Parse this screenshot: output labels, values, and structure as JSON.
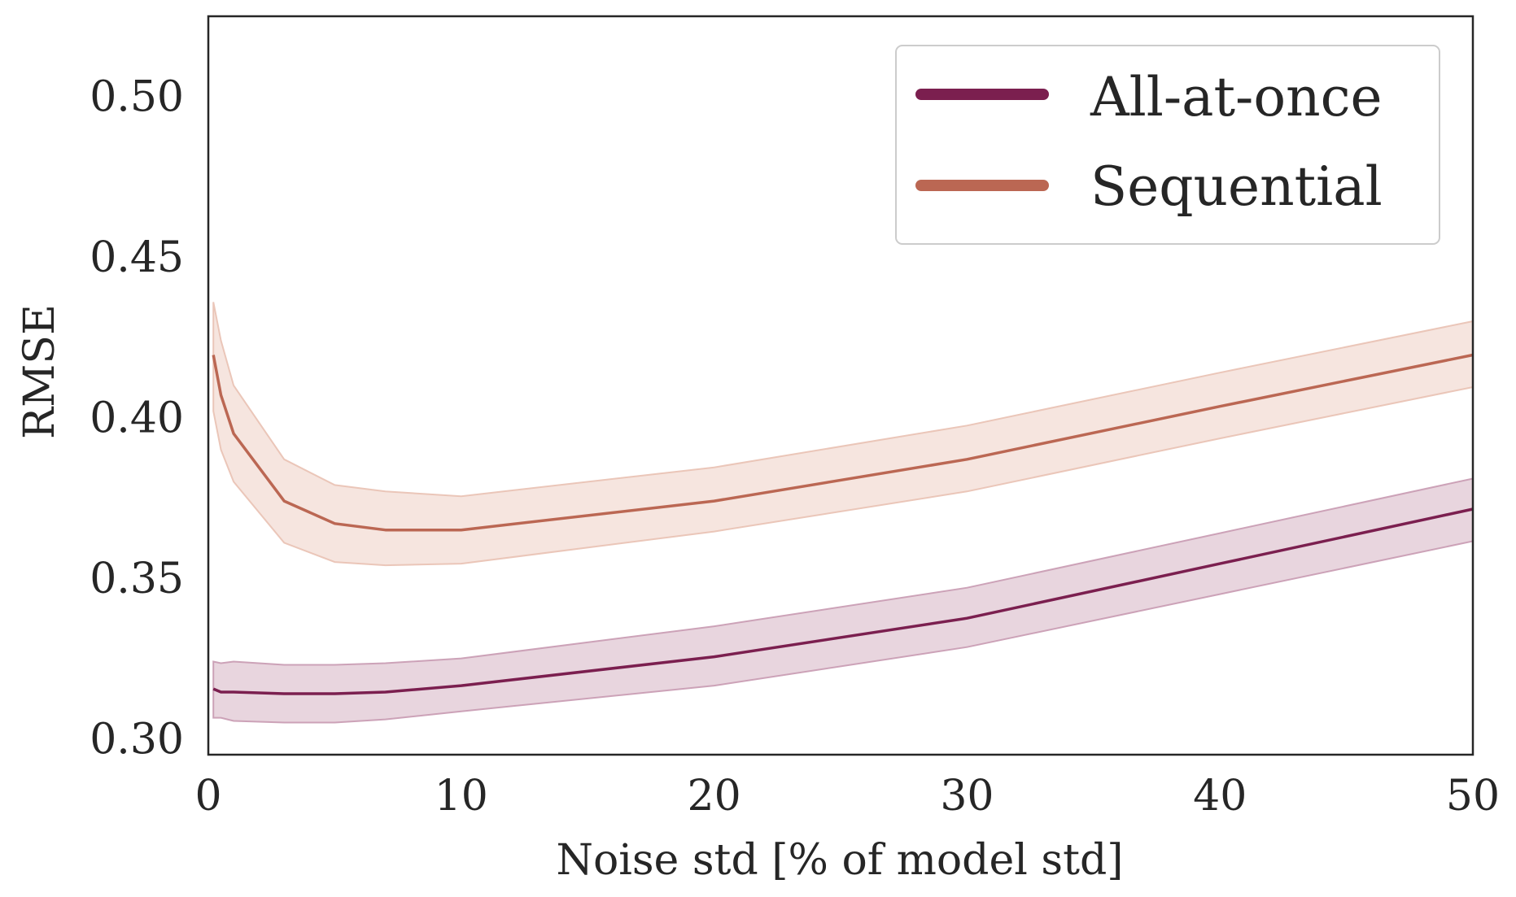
{
  "chart_data": {
    "type": "line",
    "title": "",
    "xlabel": "Noise std [% of model std]",
    "ylabel": "RMSE",
    "xlim": [
      0,
      50
    ],
    "ylim": [
      0.295,
      0.525
    ],
    "xticks": [
      0,
      10,
      20,
      30,
      40,
      50
    ],
    "xtick_labels": [
      "0",
      "10",
      "20",
      "30",
      "40",
      "50"
    ],
    "yticks": [
      0.3,
      0.35,
      0.4,
      0.45,
      0.5
    ],
    "ytick_labels": [
      "0.30",
      "0.35",
      "0.40",
      "0.45",
      "0.50"
    ],
    "grid": false,
    "legend_position": "top-right",
    "series": [
      {
        "name": "All-at-once",
        "color": "#7b1f4f",
        "band_color": "#c89ab1",
        "x": [
          0.2,
          0.5,
          1,
          3,
          5,
          7,
          10,
          20,
          30,
          40,
          50
        ],
        "values": [
          0.3155,
          0.3145,
          0.3145,
          0.314,
          0.314,
          0.3145,
          0.3165,
          0.3255,
          0.3375,
          0.3545,
          0.3715
        ],
        "lower": [
          0.3065,
          0.3065,
          0.3055,
          0.305,
          0.305,
          0.306,
          0.3085,
          0.3165,
          0.3285,
          0.345,
          0.3615
        ],
        "upper": [
          0.324,
          0.3235,
          0.324,
          0.323,
          0.323,
          0.3235,
          0.325,
          0.335,
          0.347,
          0.364,
          0.381
        ]
      },
      {
        "name": "Sequential",
        "color": "#bb6753",
        "band_color": "#e9c1b2",
        "x": [
          0.2,
          0.5,
          1,
          3,
          5,
          7,
          10,
          20,
          30,
          40,
          50
        ],
        "values": [
          0.4195,
          0.407,
          0.395,
          0.374,
          0.367,
          0.365,
          0.365,
          0.374,
          0.387,
          0.4035,
          0.4195
        ],
        "lower": [
          0.402,
          0.39,
          0.38,
          0.361,
          0.355,
          0.354,
          0.3545,
          0.3645,
          0.377,
          0.3935,
          0.4095
        ],
        "upper": [
          0.436,
          0.424,
          0.41,
          0.387,
          0.379,
          0.377,
          0.3755,
          0.3845,
          0.3975,
          0.414,
          0.43
        ]
      }
    ]
  }
}
